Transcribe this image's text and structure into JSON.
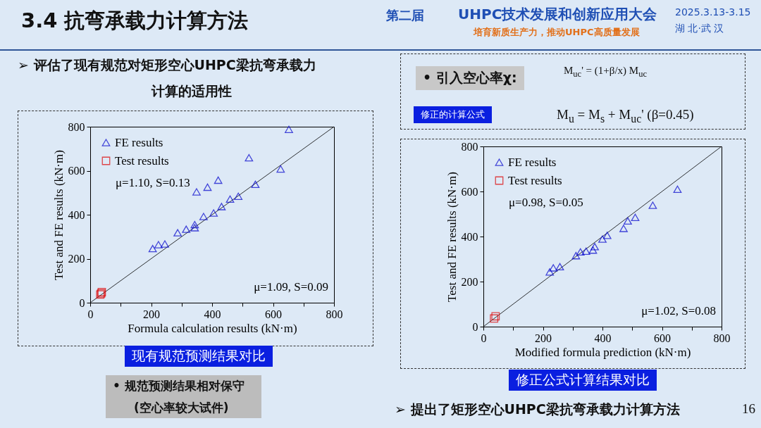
{
  "chart_data": [
    {
      "type": "scatter",
      "xlabel": "Formula calculation results (kN·m)",
      "ylabel": "Test and FE results (kN·m)",
      "xlim": [
        0,
        800
      ],
      "ylim": [
        0,
        800
      ],
      "xticks": [
        0,
        {
          "value": 100,
          "label": null
        },
        200,
        {
          "value": 300,
          "label": null
        },
        400,
        {
          "value": 500,
          "label": null
        },
        600,
        {
          "value": 700,
          "label": null
        },
        800
      ],
      "yticks": [
        0,
        200,
        400,
        600,
        800
      ],
      "grid": false,
      "legend": "top left",
      "series": [
        {
          "name": "FE results",
          "color": "#0000cc",
          "marker": "triangle",
          "x": [
            205,
            224,
            245,
            287,
            315,
            343,
            343,
            372,
            405,
            431,
            459,
            486,
            542,
            625,
            349,
            385,
            420,
            521,
            652
          ],
          "values": [
            246,
            264,
            267,
            318,
            334,
            355,
            341,
            392,
            408,
            437,
            471,
            484,
            538,
            608,
            504,
            525,
            557,
            659,
            788
          ]
        },
        {
          "name": "Test results",
          "color": "#dd0000",
          "marker": "square",
          "x": [
            33,
            36,
            38
          ],
          "values": [
            37,
            42,
            48
          ]
        },
        {
          "type": "line",
          "color": "#000000",
          "x": [
            0,
            800
          ],
          "values": [
            0,
            800
          ]
        }
      ],
      "annotations": [
        "μ=1.10, S=0.13",
        "μ=1.09, S=0.09",
        "3.4 抗弯承载力计算方法",
        "第二届",
        "UHPC技术发展和创新应用大会",
        "培育新质生产力，推动UHPC高质量发展",
        "2025.3.13-3.15",
        "湖 北·武 汉",
        "➢ 评估了现有规范对矩形空心UHPC梁抗弯承载力",
        "计算的适用性",
        "现有规范预测结果对比",
        "• 规范预测结果相对保守",
        "(空心率较大试件)"
      ]
    },
    {
      "type": "scatter",
      "xlabel": "Modified formula prediction (kN·m)",
      "ylabel": "Test and FE results (kN·m)",
      "xlim": [
        0,
        800
      ],
      "ylim": [
        0,
        800
      ],
      "xticks": [
        0,
        {
          "value": 100,
          "label": null
        },
        200,
        {
          "value": 300,
          "label": null
        },
        400,
        {
          "value": 500,
          "label": null
        },
        600,
        {
          "value": 700,
          "label": null
        },
        800
      ],
      "yticks": [
        0,
        200,
        400,
        600,
        800
      ],
      "grid": false,
      "legend": "top left",
      "series": [
        {
          "name": "FE results",
          "color": "#0000cc",
          "marker": "triangle",
          "x": [
            223,
            235,
            257,
            311,
            326,
            345,
            368,
            374,
            400,
            416,
            471,
            485,
            510,
            569,
            652
          ],
          "values": [
            243,
            261,
            266,
            315,
            332,
            335,
            340,
            355,
            389,
            405,
            436,
            469,
            485,
            539,
            610
          ]
        },
        {
          "name": "Test results",
          "color": "#dd0000",
          "marker": "square",
          "x": [
            36,
            41
          ],
          "values": [
            36,
            46
          ]
        },
        {
          "type": "line",
          "color": "#000000",
          "x": [
            0,
            800
          ],
          "values": [
            0,
            800
          ]
        }
      ],
      "annotations": [
        "μ=0.98, S=0.05",
        "μ=1.02, S=0.08",
        "• 引入空心率χ:",
        "M$_{uc}$' = (1+β/x) M$_{uc}$",
        "修正的计算公式",
        "M$_{u}$ = M$_{s}$ + M$_{uc}$' (β=0.45)",
        "修正公式计算结果对比",
        "➢ 提出了矩形空心UHPC梁抗弯承载力计算方法",
        "16"
      ]
    }
  ]
}
